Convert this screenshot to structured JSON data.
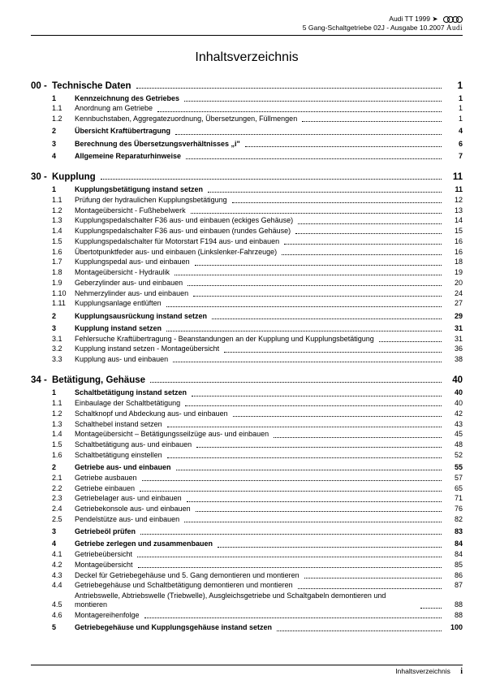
{
  "header": {
    "model": "Audi TT 1999 ➤",
    "subtitle": "5 Gang-Schaltgetriebe 02J - Ausgabe 10.2007",
    "brand": "Audi"
  },
  "title": "Inhaltsverzeichnis",
  "footer": {
    "label": "Inhaltsverzeichnis",
    "page": "i"
  },
  "sections": [
    {
      "num": "00 -",
      "title": "Technische Daten",
      "page": "1",
      "entries": [
        {
          "idx": "1",
          "label": "Kennzeichnung des Getriebes",
          "page": "1",
          "bold": true
        },
        {
          "idx": "1.1",
          "label": "Anordnung am Getriebe",
          "page": "1"
        },
        {
          "idx": "1.2",
          "label": "Kennbuchstaben, Aggregatezuordnung, Übersetzungen, Füllmengen",
          "page": "1"
        },
        {
          "idx": "2",
          "label": "Übersicht Kraftübertragung",
          "page": "4",
          "bold": true
        },
        {
          "idx": "3",
          "label": "Berechnung des Übersetzungsverhältnisses „i\"",
          "page": "6",
          "bold": true
        },
        {
          "idx": "4",
          "label": "Allgemeine Reparaturhinweise",
          "page": "7",
          "bold": true
        }
      ]
    },
    {
      "num": "30 -",
      "title": "Kupplung",
      "page": "11",
      "entries": [
        {
          "idx": "1",
          "label": "Kupplungsbetätigung instand setzen",
          "page": "11",
          "bold": true
        },
        {
          "idx": "1.1",
          "label": "Prüfung der hydraulichen Kupplungsbetätigung",
          "page": "12"
        },
        {
          "idx": "1.2",
          "label": "Montageübersicht - Fußhebelwerk",
          "page": "13"
        },
        {
          "idx": "1.3",
          "label": "Kupplungspedalschalter F36 aus- und einbauen (eckiges Gehäuse)",
          "page": "14"
        },
        {
          "idx": "1.4",
          "label": "Kupplungspedalschalter F36 aus- und einbauen (rundes Gehäuse)",
          "page": "15"
        },
        {
          "idx": "1.5",
          "label": "Kupplungspedalschalter für Motorstart F194 aus- und einbauen",
          "page": "16"
        },
        {
          "idx": "1.6",
          "label": "Übertotpunktfeder aus- und einbauen (Linkslenker-Fahrzeuge)",
          "page": "16"
        },
        {
          "idx": "1.7",
          "label": "Kupplungspedal aus- und einbauen",
          "page": "18"
        },
        {
          "idx": "1.8",
          "label": "Montageübersicht - Hydraulik",
          "page": "19"
        },
        {
          "idx": "1.9",
          "label": "Geberzylinder aus- und einbauen",
          "page": "20"
        },
        {
          "idx": "1.10",
          "label": "Nehmerzylinder aus- und einbauen",
          "page": "24"
        },
        {
          "idx": "1.11",
          "label": "Kupplungsanlage entlüften",
          "page": "27"
        },
        {
          "idx": "2",
          "label": "Kupplungsausrückung instand setzen",
          "page": "29",
          "bold": true
        },
        {
          "idx": "3",
          "label": "Kupplung instand setzen",
          "page": "31",
          "bold": true
        },
        {
          "idx": "3.1",
          "label": "Fehlersuche Kraftübertragung - Beanstandungen an der Kupplung und Kupplungsbetätigung",
          "page": "31"
        },
        {
          "idx": "3.2",
          "label": "Kupplung instand setzen - Montageübersicht",
          "page": "36"
        },
        {
          "idx": "3.3",
          "label": "Kupplung aus- und einbauen",
          "page": "38"
        }
      ]
    },
    {
      "num": "34 -",
      "title": "Betätigung, Gehäuse",
      "page": "40",
      "entries": [
        {
          "idx": "1",
          "label": "Schaltbetätigung instand setzen",
          "page": "40",
          "bold": true
        },
        {
          "idx": "1.1",
          "label": "Einbaulage der Schaltbetätigung",
          "page": "40"
        },
        {
          "idx": "1.2",
          "label": "Schaltknopf und Abdeckung aus- und einbauen",
          "page": "42"
        },
        {
          "idx": "1.3",
          "label": "Schalthebel instand setzen",
          "page": "43"
        },
        {
          "idx": "1.4",
          "label": "Montageübersicht – Betätigungsseilzüge aus- und einbauen",
          "page": "45"
        },
        {
          "idx": "1.5",
          "label": "Schaltbetätigung aus- und einbauen",
          "page": "48"
        },
        {
          "idx": "1.6",
          "label": "Schaltbetätigung einstellen",
          "page": "52"
        },
        {
          "idx": "2",
          "label": "Getriebe aus- und einbauen",
          "page": "55",
          "bold": true
        },
        {
          "idx": "2.1",
          "label": "Getriebe ausbauen",
          "page": "57"
        },
        {
          "idx": "2.2",
          "label": "Getriebe einbauen",
          "page": "65"
        },
        {
          "idx": "2.3",
          "label": "Getriebelager aus- und einbauen",
          "page": "71"
        },
        {
          "idx": "2.4",
          "label": "Getriebekonsole aus- und einbauen",
          "page": "76"
        },
        {
          "idx": "2.5",
          "label": "Pendelstütze aus- und einbauen",
          "page": "82"
        },
        {
          "idx": "3",
          "label": "Getriebeöl prüfen",
          "page": "83",
          "bold": true
        },
        {
          "idx": "4",
          "label": "Getriebe zerlegen und zusammenbauen",
          "page": "84",
          "bold": true
        },
        {
          "idx": "4.1",
          "label": "Getriebeübersicht",
          "page": "84"
        },
        {
          "idx": "4.2",
          "label": "Montageübersicht",
          "page": "85"
        },
        {
          "idx": "4.3",
          "label": "Deckel für Getriebegehäuse und 5. Gang demontieren und montieren",
          "page": "86"
        },
        {
          "idx": "4.4",
          "label": "Getriebegehäuse und Schaltbetätigung demontieren und montieren",
          "page": "87"
        },
        {
          "idx": "4.5",
          "label": "Antriebswelle, Abtriebswelle (Triebwelle), Ausgleichsgetriebe und Schaltgabeln demontieren und montieren",
          "page": "88"
        },
        {
          "idx": "4.6",
          "label": "Montagereihenfolge",
          "page": "88"
        },
        {
          "idx": "5",
          "label": "Getriebegehäuse und Kupplungsgehäuse instand setzen",
          "page": "100",
          "bold": true
        }
      ]
    }
  ]
}
